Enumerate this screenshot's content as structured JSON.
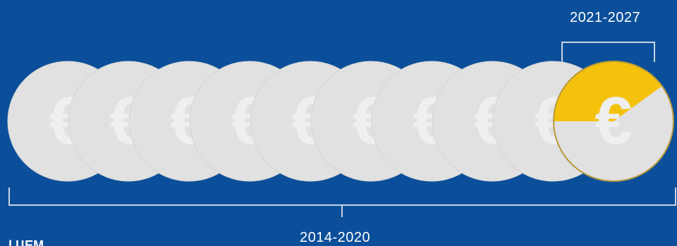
{
  "period_future": "2021-2027",
  "period_past": "2014-2020",
  "cut_label": "... l ЦЕМ",
  "coins": {
    "count": 10,
    "symbol": "€",
    "highlight_fraction": 0.4
  },
  "colors": {
    "background": "#0b4f9a",
    "coin": "#e1e1e1",
    "coin_symbol": "#efefef",
    "highlight": "#f4c20d",
    "highlight_border": "#b89a3a",
    "bracket": "#c8d3e3"
  }
}
